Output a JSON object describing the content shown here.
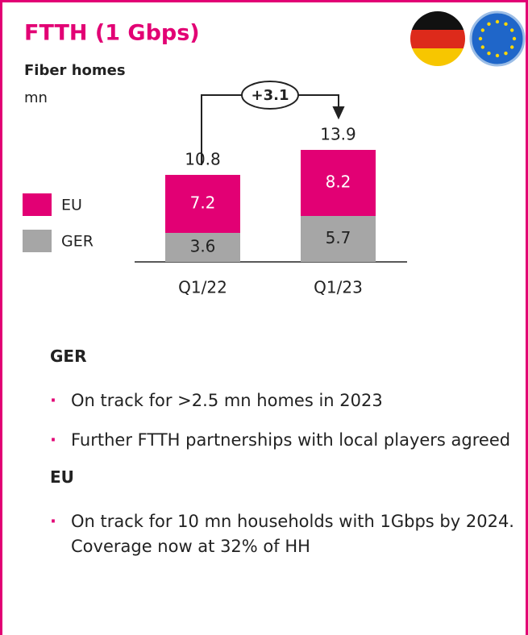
{
  "chart_data": {
    "type": "bar",
    "stacked": true,
    "title": "FTTH (1 Gbps)",
    "subtitle": "Fiber homes",
    "unit": "mn",
    "categories": [
      "Q1/22",
      "Q1/23"
    ],
    "series": [
      {
        "name": "GER",
        "color": "#a6a6a6",
        "values": [
          3.6,
          5.7
        ]
      },
      {
        "name": "EU",
        "color": "#e20074",
        "values": [
          7.2,
          8.2
        ]
      }
    ],
    "totals": [
      10.8,
      13.9
    ],
    "annotation": "+3.1"
  },
  "notes": [
    {
      "heading": "GER",
      "bullets": [
        "On track for >2.5 mn homes in 2023",
        "Further FTTH partnerships with local players agreed"
      ]
    },
    {
      "heading": "EU",
      "bullets": [
        "On track for 10 mn households with 1Gbps by 2024. Coverage now at 32% of HH"
      ]
    }
  ]
}
